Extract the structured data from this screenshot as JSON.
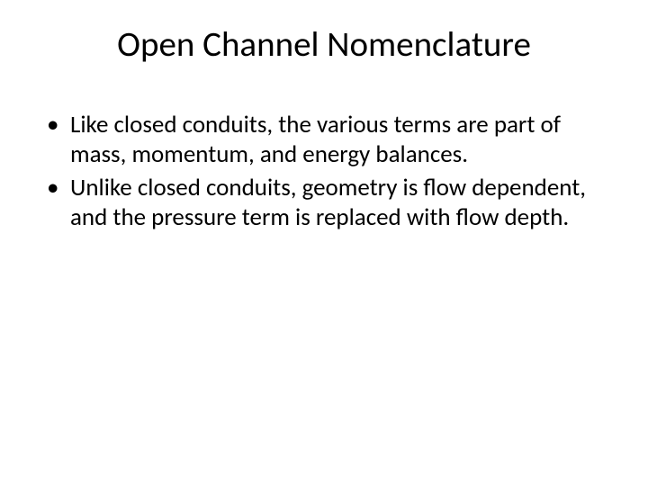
{
  "slide": {
    "title": "Open Channel Nomenclature",
    "bullets": [
      "Like closed conduits, the various terms are part of mass, momentum, and energy balances.",
      "Unlike closed conduits, geometry is flow dependent, and the pressure term is replaced with flow depth."
    ]
  },
  "style": {
    "background_color": "#ffffff",
    "text_color": "#000000",
    "title_fontsize": 39,
    "body_fontsize": 27,
    "font_family": "Calibri"
  }
}
